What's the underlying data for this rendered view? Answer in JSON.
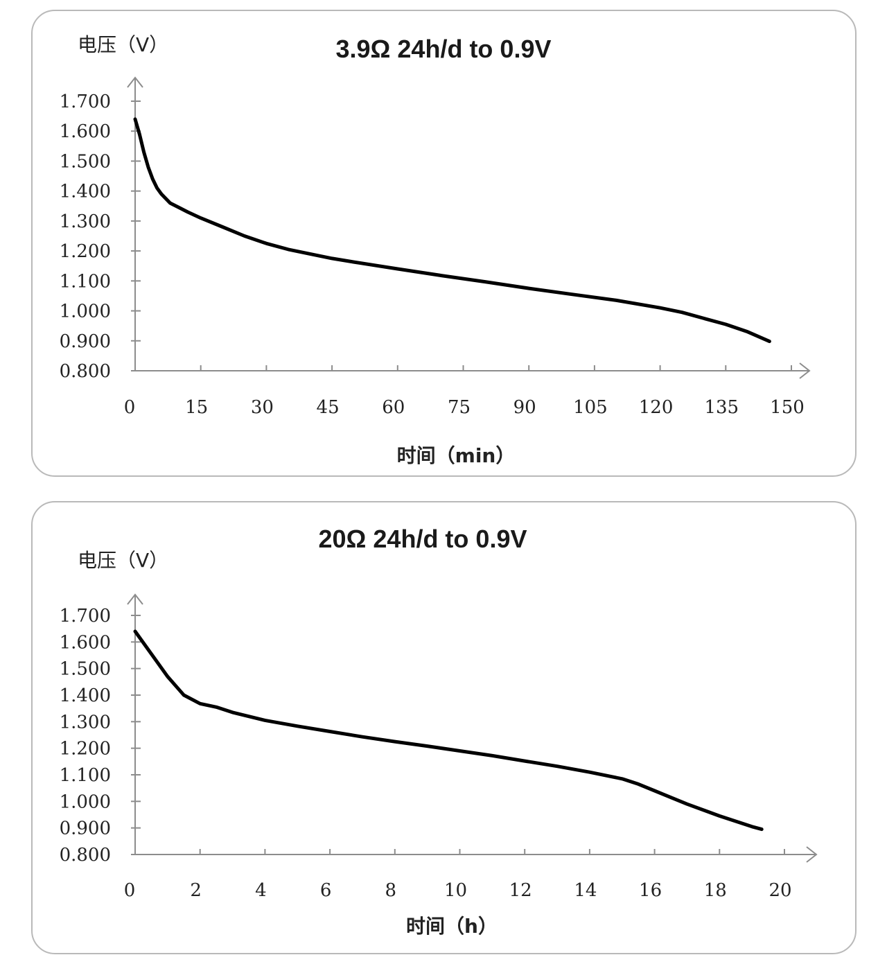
{
  "chart_data": [
    {
      "type": "line",
      "title": "3.9Ω 24h/d to 0.9V",
      "ylabel": "电压（V）",
      "xlabel": "时间（min）",
      "ylim": [
        0.8,
        1.7
      ],
      "xlim": [
        0,
        150
      ],
      "y_ticks": [
        "1.700",
        "1.600",
        "1.500",
        "1.400",
        "1.300",
        "1.200",
        "1.100",
        "1.000",
        "0.900",
        "0.800"
      ],
      "x_ticks": [
        "0",
        "15",
        "30",
        "45",
        "60",
        "75",
        "90",
        "105",
        "120",
        "135",
        "150"
      ],
      "grid": false,
      "series": [
        {
          "name": "3.9Ω",
          "x": [
            0,
            1,
            2,
            3,
            4,
            5,
            6,
            7,
            8,
            10,
            12,
            15,
            20,
            25,
            30,
            35,
            40,
            45,
            50,
            60,
            70,
            80,
            90,
            100,
            110,
            120,
            125,
            130,
            135,
            140,
            145
          ],
          "y": [
            1.64,
            1.59,
            1.53,
            1.48,
            1.44,
            1.41,
            1.39,
            1.375,
            1.36,
            1.345,
            1.33,
            1.31,
            1.28,
            1.25,
            1.225,
            1.205,
            1.19,
            1.175,
            1.163,
            1.14,
            1.118,
            1.097,
            1.075,
            1.055,
            1.035,
            1.01,
            0.995,
            0.975,
            0.955,
            0.93,
            0.898
          ]
        }
      ]
    },
    {
      "type": "line",
      "title": "20Ω 24h/d to 0.9V",
      "ylabel": "电压（V）",
      "xlabel": "时间（h）",
      "ylim": [
        0.8,
        1.7
      ],
      "xlim": [
        0,
        20
      ],
      "y_ticks": [
        "1.700",
        "1.600",
        "1.500",
        "1.400",
        "1.300",
        "1.200",
        "1.100",
        "1.000",
        "0.900",
        "0.800"
      ],
      "x_ticks": [
        "0",
        "2",
        "4",
        "6",
        "8",
        "10",
        "12",
        "14",
        "16",
        "18",
        "20"
      ],
      "grid": false,
      "series": [
        {
          "name": "20Ω",
          "x": [
            0,
            0.5,
            1,
            1.5,
            2,
            2.5,
            3,
            4,
            5,
            6,
            7,
            8,
            9,
            10,
            11,
            12,
            13,
            14,
            15,
            15.5,
            16,
            17,
            18,
            19,
            19.3
          ],
          "y": [
            1.64,
            1.555,
            1.47,
            1.4,
            1.368,
            1.355,
            1.335,
            1.305,
            1.283,
            1.263,
            1.243,
            1.225,
            1.208,
            1.19,
            1.172,
            1.152,
            1.132,
            1.11,
            1.085,
            1.065,
            1.04,
            0.99,
            0.945,
            0.905,
            0.895
          ]
        }
      ]
    }
  ]
}
